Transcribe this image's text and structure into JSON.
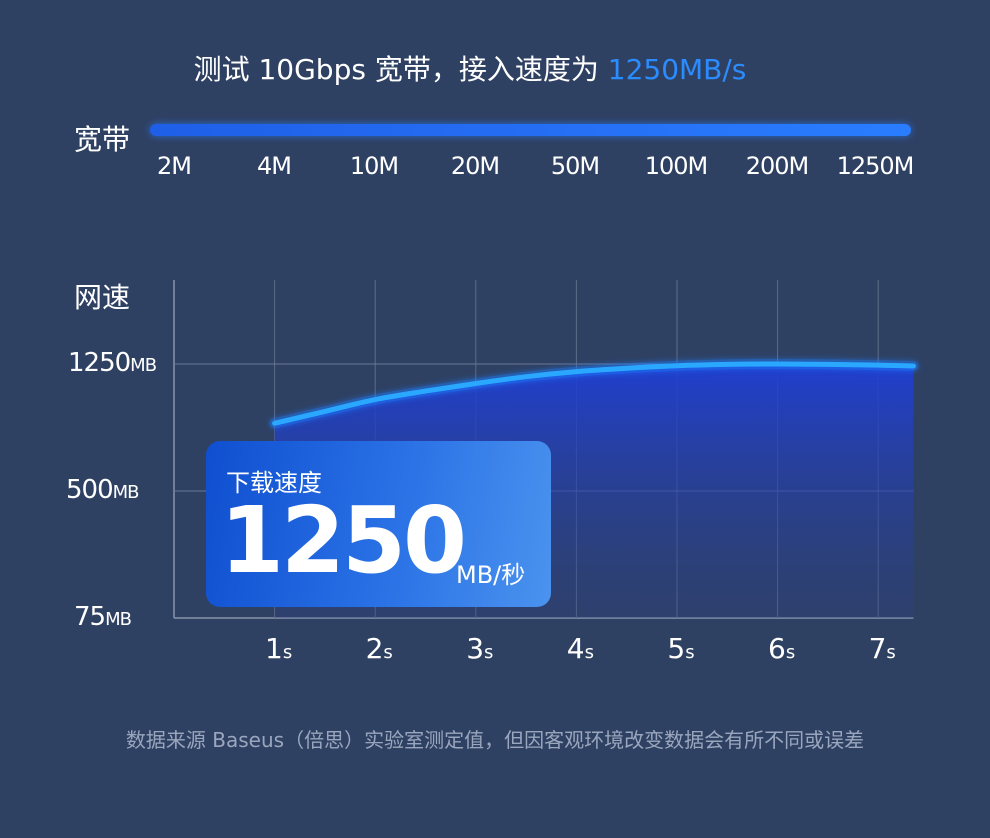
{
  "headline": {
    "prefix": "测试 10Gbps 宽带，接入速度为 ",
    "accent": "1250MB/s",
    "accent_color": "#2b8cff"
  },
  "bandwidth": {
    "label": "宽带",
    "ticks": [
      "2M",
      "4M",
      "10M",
      "20M",
      "50M",
      "100M",
      "200M",
      "1250M"
    ],
    "bar_color": "#2a7dff"
  },
  "chart_data": {
    "type": "area",
    "ylabel": "网速",
    "y_ticks": [
      {
        "value": 75,
        "label": "75",
        "unit": "MB"
      },
      {
        "value": 500,
        "label": "500",
        "unit": "MB"
      },
      {
        "value": 1250,
        "label": "1250",
        "unit": "MB"
      }
    ],
    "x_ticks": [
      {
        "value": 1,
        "label": "1",
        "unit": "s"
      },
      {
        "value": 2,
        "label": "2",
        "unit": "s"
      },
      {
        "value": 3,
        "label": "3",
        "unit": "s"
      },
      {
        "value": 4,
        "label": "4",
        "unit": "s"
      },
      {
        "value": 5,
        "label": "5",
        "unit": "s"
      },
      {
        "value": 6,
        "label": "6",
        "unit": "s"
      },
      {
        "value": 7,
        "label": "7",
        "unit": "s"
      }
    ],
    "series": [
      {
        "x": [
          1,
          1.5,
          2,
          2.5,
          3,
          3.5,
          4,
          4.5,
          5,
          5.5,
          6,
          6.5,
          7,
          7.35
        ],
        "values": [
          900,
          970,
          1040,
          1090,
          1135,
          1175,
          1205,
          1225,
          1240,
          1248,
          1250,
          1248,
          1243,
          1238
        ],
        "color": "#2aa8ff"
      }
    ],
    "grid": true,
    "xlim": [
      0,
      7.35
    ]
  },
  "badge": {
    "title": "下载速度",
    "value": "1250",
    "unit": "MB/秒"
  },
  "footnote": "数据来源 Baseus（倍思）实验室测定值，但因客观环境改变数据会有所不同或误差"
}
